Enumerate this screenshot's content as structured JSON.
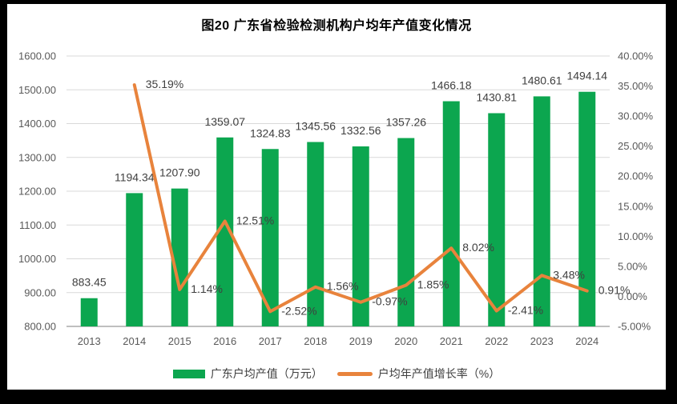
{
  "frame": {
    "background": "#000000",
    "card_background": "#FFFFFF"
  },
  "chart_data": {
    "type": "bar+line",
    "title": "图20 广东省检验检测机构户均年产值变化情况",
    "categories": [
      "2013",
      "2014",
      "2015",
      "2016",
      "2017",
      "2018",
      "2019",
      "2020",
      "2021",
      "2022",
      "2023",
      "2024"
    ],
    "series": [
      {
        "name": "广东户均产值（万元）",
        "type": "bar",
        "axis": "left",
        "color": "#0CA64F",
        "values": [
          883.45,
          1194.34,
          1207.9,
          1359.07,
          1324.83,
          1345.56,
          1332.56,
          1357.26,
          1466.18,
          1430.81,
          1480.61,
          1494.14
        ],
        "labels": [
          "883.45",
          "1194.34",
          "1207.90",
          "1359.07",
          "1324.83",
          "1345.56",
          "1332.56",
          "1357.26",
          "1466.18",
          "1430.81",
          "1480.61",
          "1494.14"
        ]
      },
      {
        "name": "户均年产值增长率（%）",
        "type": "line",
        "axis": "right",
        "color": "#E8833C",
        "values": [
          null,
          35.19,
          1.14,
          12.51,
          -2.52,
          1.56,
          -0.97,
          1.85,
          8.02,
          -2.41,
          3.48,
          0.91
        ],
        "labels": [
          null,
          "35.19%",
          "1.14%",
          "12.51%",
          "-2.52%",
          "1.56%",
          "-0.97%",
          "1.85%",
          "8.02%",
          "-2.41%",
          "3.48%",
          "0.91%"
        ]
      }
    ],
    "left_axis": {
      "min": 800,
      "max": 1600,
      "step": 100,
      "tick_labels": [
        "800.00",
        "900.00",
        "1000.00",
        "1100.00",
        "1200.00",
        "1300.00",
        "1400.00",
        "1500.00",
        "1600.00"
      ]
    },
    "right_axis": {
      "min": -5,
      "max": 40,
      "step": 5,
      "tick_labels": [
        "-5.00%",
        "0.00%",
        "5.00%",
        "10.00%",
        "15.00%",
        "20.00%",
        "25.00%",
        "30.00%",
        "35.00%",
        "40.00%"
      ]
    },
    "grid": true,
    "legend_position": "bottom",
    "colors": {
      "grid": "#D9D9D9",
      "axis_line": "#BFBFBF",
      "tick_text": "#595959",
      "data_label_text": "#3F3F3F",
      "title_text": "#000000"
    }
  }
}
